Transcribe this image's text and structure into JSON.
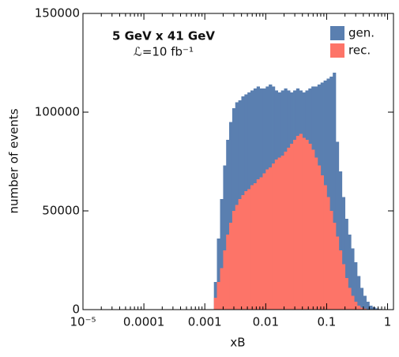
{
  "chart_data": {
    "type": "histogram",
    "annotations": [
      "5 GeV x 41 GeV",
      "ℒ=10 fb⁻¹"
    ],
    "x_label": "xB",
    "y_label": "number of events",
    "x_log": true,
    "legend": "upper right",
    "xlim": [
      1e-05,
      1.25
    ],
    "xticks": [
      {
        "value": 1e-05,
        "label": "10⁻⁵"
      },
      0.0001,
      0.001,
      0.01,
      0.1,
      1
    ],
    "ylim": [
      0,
      150000
    ],
    "yticks": [
      0,
      50000,
      100000,
      150000
    ],
    "bins": [
      0.001,
      0.00112,
      0.00126,
      0.00141,
      0.00158,
      0.00178,
      0.002,
      0.00224,
      0.00251,
      0.00282,
      0.00316,
      0.00355,
      0.00398,
      0.00447,
      0.00501,
      0.00562,
      0.00631,
      0.00708,
      0.00794,
      0.00891,
      0.01,
      0.0112,
      0.0126,
      0.0141,
      0.0158,
      0.0178,
      0.02,
      0.0224,
      0.0251,
      0.0282,
      0.0316,
      0.0355,
      0.0398,
      0.0447,
      0.0501,
      0.0562,
      0.0631,
      0.0708,
      0.0794,
      0.0891,
      0.1,
      0.112,
      0.126,
      0.141,
      0.158,
      0.178,
      0.2,
      0.224,
      0.251,
      0.282,
      0.316,
      0.355,
      0.398,
      0.447,
      0.501,
      0.562,
      0.631,
      0.708,
      0.794,
      0.891,
      1
    ],
    "series": [
      {
        "name": "gen.",
        "color": "#5a7fb0",
        "values": [
          0,
          0,
          0,
          14000,
          36000,
          56000,
          73000,
          86000,
          95000,
          102000,
          105000,
          106000,
          108000,
          109000,
          110000,
          111000,
          112000,
          113000,
          112000,
          112000,
          113000,
          114000,
          113000,
          111000,
          110000,
          111000,
          112000,
          111000,
          110000,
          111000,
          112000,
          111000,
          110000,
          111000,
          112000,
          113000,
          113000,
          114000,
          115000,
          116000,
          117000,
          118000,
          120000,
          85000,
          70000,
          57000,
          46000,
          38000,
          31000,
          24000,
          17000,
          11000,
          7000,
          4000,
          2000,
          1200,
          600,
          300,
          100,
          0
        ]
      },
      {
        "name": "rec.",
        "color": "#fd7468",
        "values": [
          0,
          0,
          0,
          6000,
          14000,
          21000,
          30000,
          38000,
          44000,
          50000,
          53000,
          56000,
          58000,
          60000,
          61000,
          63000,
          64000,
          66000,
          67000,
          69000,
          71000,
          72000,
          74000,
          76000,
          77000,
          78000,
          80000,
          82000,
          84000,
          86000,
          88000,
          89000,
          87000,
          86000,
          84000,
          81000,
          77000,
          73000,
          68000,
          63000,
          57000,
          50000,
          44000,
          37000,
          30000,
          23000,
          16000,
          11000,
          7000,
          4000,
          2000,
          1000,
          500,
          200,
          100,
          0,
          0,
          0,
          0,
          0
        ]
      }
    ]
  }
}
